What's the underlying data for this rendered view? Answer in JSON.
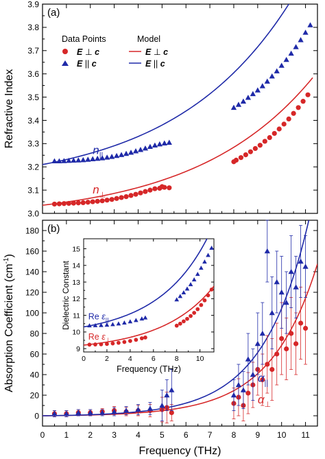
{
  "colors": {
    "perp": "#d62728",
    "par": "#1f2aa8",
    "axis": "#000000"
  },
  "legend": {
    "data_header": "Data Points",
    "model_header": "Model",
    "perp_prefix": "E ",
    "perp_symbol": "⊥",
    "perp_suffix": " c",
    "par_prefix": "E ",
    "par_symbol": "||",
    "par_suffix": " c"
  },
  "chart_data": [
    {
      "type": "scatter",
      "panel": "(a)",
      "xlabel": "",
      "ylabel": "Refractive Index",
      "xlim": [
        0,
        11.5
      ],
      "ylim": [
        3.0,
        3.9
      ],
      "xticks": [
        "0",
        "1",
        "2",
        "3",
        "4",
        "5",
        "6",
        "7",
        "8",
        "9",
        "10",
        "11"
      ],
      "yticks": [
        "3.0",
        "3.1",
        "3.2",
        "3.3",
        "3.4",
        "3.5",
        "3.6",
        "3.7",
        "3.8",
        "3.9"
      ],
      "annotations": [
        {
          "base": "n",
          "sub": "||",
          "series": "par",
          "x": 2.1,
          "y": 3.255
        },
        {
          "base": "n",
          "sub": "⊥",
          "series": "perp",
          "x": 2.1,
          "y": 3.085
        }
      ],
      "series": [
        {
          "key": "perp",
          "marker": "circle",
          "points": [
            [
              0.5,
              3.04
            ],
            [
              0.7,
              3.041
            ],
            [
              0.9,
              3.042
            ],
            [
              1.1,
              3.043
            ],
            [
              1.3,
              3.044
            ],
            [
              1.5,
              3.045
            ],
            [
              1.7,
              3.046
            ],
            [
              1.9,
              3.048
            ],
            [
              2.1,
              3.05
            ],
            [
              2.3,
              3.052
            ],
            [
              2.5,
              3.054
            ],
            [
              2.7,
              3.057
            ],
            [
              2.9,
              3.06
            ],
            [
              3.1,
              3.064
            ],
            [
              3.3,
              3.068
            ],
            [
              3.5,
              3.072
            ],
            [
              3.7,
              3.077
            ],
            [
              3.9,
              3.082
            ],
            [
              4.1,
              3.088
            ],
            [
              4.3,
              3.094
            ],
            [
              4.5,
              3.1
            ],
            [
              4.7,
              3.106
            ],
            [
              4.9,
              3.108
            ],
            [
              5.0,
              3.115
            ],
            [
              5.1,
              3.112
            ],
            [
              5.3,
              3.11
            ],
            [
              8.0,
              3.222
            ],
            [
              8.1,
              3.229
            ],
            [
              8.3,
              3.24
            ],
            [
              8.5,
              3.252
            ],
            [
              8.7,
              3.265
            ],
            [
              8.9,
              3.279
            ],
            [
              9.1,
              3.293
            ],
            [
              9.3,
              3.31
            ],
            [
              9.5,
              3.326
            ],
            [
              9.7,
              3.344
            ],
            [
              9.9,
              3.363
            ],
            [
              10.1,
              3.384
            ],
            [
              10.3,
              3.406
            ],
            [
              10.5,
              3.43
            ],
            [
              10.7,
              3.455
            ],
            [
              10.9,
              3.482
            ],
            [
              11.1,
              3.51
            ]
          ]
        },
        {
          "key": "par",
          "marker": "triangle",
          "points": [
            [
              0.5,
              3.225
            ],
            [
              0.7,
              3.225
            ],
            [
              0.9,
              3.226
            ],
            [
              1.1,
              3.227
            ],
            [
              1.3,
              3.228
            ],
            [
              1.5,
              3.229
            ],
            [
              1.7,
              3.23
            ],
            [
              1.9,
              3.232
            ],
            [
              2.1,
              3.234
            ],
            [
              2.3,
              3.236
            ],
            [
              2.5,
              3.238
            ],
            [
              2.7,
              3.241
            ],
            [
              2.9,
              3.244
            ],
            [
              3.1,
              3.248
            ],
            [
              3.3,
              3.252
            ],
            [
              3.5,
              3.257
            ],
            [
              3.7,
              3.262
            ],
            [
              3.9,
              3.268
            ],
            [
              4.1,
              3.274
            ],
            [
              4.3,
              3.28
            ],
            [
              4.5,
              3.287
            ],
            [
              4.7,
              3.293
            ],
            [
              4.9,
              3.298
            ],
            [
              5.1,
              3.302
            ],
            [
              5.3,
              3.305
            ],
            [
              8.0,
              3.455
            ],
            [
              8.2,
              3.468
            ],
            [
              8.4,
              3.482
            ],
            [
              8.6,
              3.498
            ],
            [
              8.8,
              3.514
            ],
            [
              9.0,
              3.53
            ],
            [
              9.2,
              3.548
            ],
            [
              9.4,
              3.568
            ],
            [
              9.6,
              3.59
            ],
            [
              9.8,
              3.612
            ],
            [
              10.0,
              3.636
            ],
            [
              10.2,
              3.661
            ],
            [
              10.4,
              3.688
            ],
            [
              10.6,
              3.716
            ],
            [
              10.8,
              3.746
            ],
            [
              11.0,
              3.778
            ],
            [
              11.2,
              3.81
            ]
          ]
        }
      ],
      "fits": [
        {
          "key": "perp",
          "n0": 3.035,
          "a": 0.06,
          "b": 0.205,
          "x0": 0,
          "x1": 11.3
        },
        {
          "key": "par",
          "n0": 3.21,
          "a": 0.095,
          "b": 0.205,
          "x0": 0,
          "x1": 11.4
        }
      ]
    },
    {
      "type": "scatter",
      "panel": "(b)",
      "xlabel": "Frequency (THz)",
      "ylabel_main": "Absorption Coefficient (cm",
      "ylabel_sup": "-1",
      "ylabel_end": ")",
      "xlim": [
        0,
        11.5
      ],
      "ylim": [
        -10,
        190
      ],
      "xticks": [
        "0",
        "1",
        "2",
        "3",
        "4",
        "5",
        "6",
        "7",
        "8",
        "9",
        "10",
        "11"
      ],
      "yticks": [
        "0",
        "20",
        "40",
        "60",
        "80",
        "100",
        "120",
        "140",
        "160",
        "180"
      ],
      "annotations": [
        {
          "base": "α",
          "sub": "||",
          "series": "par",
          "x": 9.0,
          "y": 33
        },
        {
          "base": "α",
          "sub": "⊥",
          "series": "perp",
          "x": 9.0,
          "y": 12
        }
      ],
      "series": [
        {
          "key": "perp",
          "marker": "circle",
          "points": [
            [
              0.5,
              2,
              3
            ],
            [
              1.0,
              2,
              3
            ],
            [
              1.5,
              3,
              3
            ],
            [
              2.0,
              3,
              3
            ],
            [
              2.5,
              4,
              3
            ],
            [
              3.0,
              5,
              4
            ],
            [
              3.5,
              4,
              4
            ],
            [
              4.0,
              5,
              5
            ],
            [
              4.5,
              5,
              6
            ],
            [
              5.0,
              6,
              12
            ],
            [
              5.2,
              8,
              15
            ],
            [
              5.4,
              3,
              8
            ],
            [
              8.0,
              12,
              15
            ],
            [
              8.2,
              18,
              18
            ],
            [
              8.4,
              10,
              15
            ],
            [
              8.6,
              22,
              20
            ],
            [
              8.8,
              30,
              22
            ],
            [
              9.0,
              45,
              25
            ],
            [
              9.2,
              35,
              25
            ],
            [
              9.4,
              50,
              28
            ],
            [
              9.6,
              45,
              30
            ],
            [
              9.8,
              60,
              30
            ],
            [
              10.0,
              75,
              35
            ],
            [
              10.2,
              65,
              30
            ],
            [
              10.4,
              80,
              35
            ],
            [
              10.6,
              70,
              30
            ],
            [
              10.8,
              90,
              35
            ],
            [
              11.0,
              85,
              35
            ]
          ]
        },
        {
          "key": "par",
          "marker": "triangle",
          "points": [
            [
              0.5,
              2,
              3
            ],
            [
              1.0,
              2,
              3
            ],
            [
              1.5,
              3,
              3
            ],
            [
              2.0,
              3,
              3
            ],
            [
              2.5,
              3,
              3
            ],
            [
              3.0,
              4,
              4
            ],
            [
              3.5,
              5,
              4
            ],
            [
              4.0,
              6,
              5
            ],
            [
              4.5,
              7,
              6
            ],
            [
              5.0,
              10,
              15
            ],
            [
              5.2,
              20,
              15
            ],
            [
              5.4,
              25,
              20
            ],
            [
              8.0,
              20,
              15
            ],
            [
              8.2,
              30,
              20
            ],
            [
              8.4,
              25,
              18
            ],
            [
              8.6,
              55,
              25
            ],
            [
              8.8,
              40,
              25
            ],
            [
              9.0,
              70,
              30
            ],
            [
              9.2,
              80,
              30
            ],
            [
              9.4,
              160,
              30
            ],
            [
              9.6,
              100,
              35
            ],
            [
              9.8,
              130,
              30
            ],
            [
              10.0,
              120,
              35
            ],
            [
              10.2,
              110,
              30
            ],
            [
              10.4,
              140,
              35
            ],
            [
              10.6,
              125,
              30
            ],
            [
              10.8,
              150,
              35
            ],
            [
              11.0,
              145,
              30
            ]
          ]
        }
      ],
      "fits": [
        {
          "key": "perp",
          "a": 0.42,
          "b": 0.51,
          "x0": 0,
          "x1": 11.5
        },
        {
          "key": "par",
          "a": 0.55,
          "b": 0.525,
          "x0": 0,
          "x1": 11.5
        }
      ]
    },
    {
      "type": "scatter",
      "panel": "inset",
      "xlabel": "Frequency (THz)",
      "ylabel": "Dielectric Constant",
      "xlim": [
        0,
        11.2
      ],
      "ylim": [
        8.8,
        15.6
      ],
      "xticks": [
        "0",
        "2",
        "4",
        "6",
        "8",
        "10"
      ],
      "yticks": [
        "9",
        "10",
        "11",
        "12",
        "13",
        "14",
        "15"
      ],
      "labels": [
        {
          "prefix": "Re ",
          "base": "ε",
          "sub": "||",
          "series": "par",
          "x": 0.4,
          "y": 10.75
        },
        {
          "prefix": "Re ",
          "base": "ε",
          "sub": "⊥",
          "series": "perp",
          "x": 0.4,
          "y": 9.55
        }
      ],
      "series": [
        {
          "key": "perp",
          "marker": "circle",
          "points": [
            [
              0.5,
              9.24
            ],
            [
              1.0,
              9.25
            ],
            [
              1.5,
              9.26
            ],
            [
              2.0,
              9.28
            ],
            [
              2.5,
              9.31
            ],
            [
              3.0,
              9.35
            ],
            [
              3.5,
              9.4
            ],
            [
              4.0,
              9.46
            ],
            [
              4.5,
              9.53
            ],
            [
              5.0,
              9.62
            ],
            [
              5.3,
              9.67
            ],
            [
              8.0,
              10.38
            ],
            [
              8.3,
              10.5
            ],
            [
              8.6,
              10.64
            ],
            [
              8.9,
              10.79
            ],
            [
              9.2,
              10.96
            ],
            [
              9.5,
              11.15
            ],
            [
              9.8,
              11.37
            ],
            [
              10.1,
              11.62
            ],
            [
              10.4,
              11.9
            ],
            [
              10.7,
              12.2
            ],
            [
              11.0,
              12.55
            ]
          ]
        },
        {
          "key": "par",
          "marker": "triangle",
          "points": [
            [
              0.5,
              10.39
            ],
            [
              1.0,
              10.4
            ],
            [
              1.5,
              10.41
            ],
            [
              2.0,
              10.43
            ],
            [
              2.5,
              10.46
            ],
            [
              3.0,
              10.5
            ],
            [
              3.5,
              10.56
            ],
            [
              4.0,
              10.63
            ],
            [
              4.5,
              10.71
            ],
            [
              5.0,
              10.8
            ],
            [
              5.3,
              10.86
            ],
            [
              8.0,
              11.95
            ],
            [
              8.3,
              12.15
            ],
            [
              8.6,
              12.37
            ],
            [
              8.9,
              12.6
            ],
            [
              9.2,
              12.86
            ],
            [
              9.5,
              13.15
            ],
            [
              9.8,
              13.48
            ],
            [
              10.1,
              13.85
            ],
            [
              10.4,
              14.22
            ],
            [
              10.7,
              14.62
            ],
            [
              11.0,
              15.05
            ]
          ]
        }
      ],
      "fits": [
        {
          "key": "perp",
          "n0": 3.035,
          "a": 0.06,
          "b": 0.205,
          "square": true,
          "x0": 0,
          "x1": 11.2
        },
        {
          "key": "par",
          "n0": 3.21,
          "a": 0.095,
          "b": 0.205,
          "square": true,
          "x0": 0,
          "x1": 11.2
        }
      ]
    }
  ]
}
